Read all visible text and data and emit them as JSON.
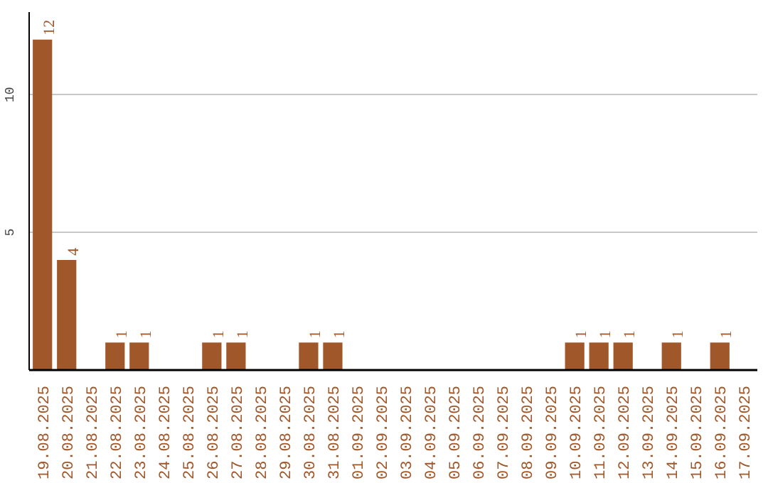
{
  "chart_data": {
    "type": "bar",
    "categories": [
      "19.08.2025",
      "20.08.2025",
      "21.08.2025",
      "22.08.2025",
      "23.08.2025",
      "24.08.2025",
      "25.08.2025",
      "26.08.2025",
      "27.08.2025",
      "28.08.2025",
      "29.08.2025",
      "30.08.2025",
      "31.08.2025",
      "01.09.2025",
      "02.09.2025",
      "03.09.2025",
      "04.09.2025",
      "05.09.2025",
      "06.09.2025",
      "07.09.2025",
      "08.09.2025",
      "09.09.2025",
      "10.09.2025",
      "11.09.2025",
      "12.09.2025",
      "13.09.2025",
      "14.09.2025",
      "15.09.2025",
      "16.09.2025",
      "17.09.2025"
    ],
    "values": [
      12,
      4,
      null,
      1,
      1,
      null,
      null,
      1,
      1,
      null,
      null,
      1,
      1,
      null,
      null,
      null,
      null,
      null,
      null,
      null,
      null,
      null,
      1,
      1,
      1,
      null,
      1,
      null,
      1,
      null
    ],
    "color": "#a0572a",
    "ylim": [
      0,
      13
    ],
    "yticks": [
      5,
      10
    ],
    "grid": "y",
    "data_labels": true
  }
}
